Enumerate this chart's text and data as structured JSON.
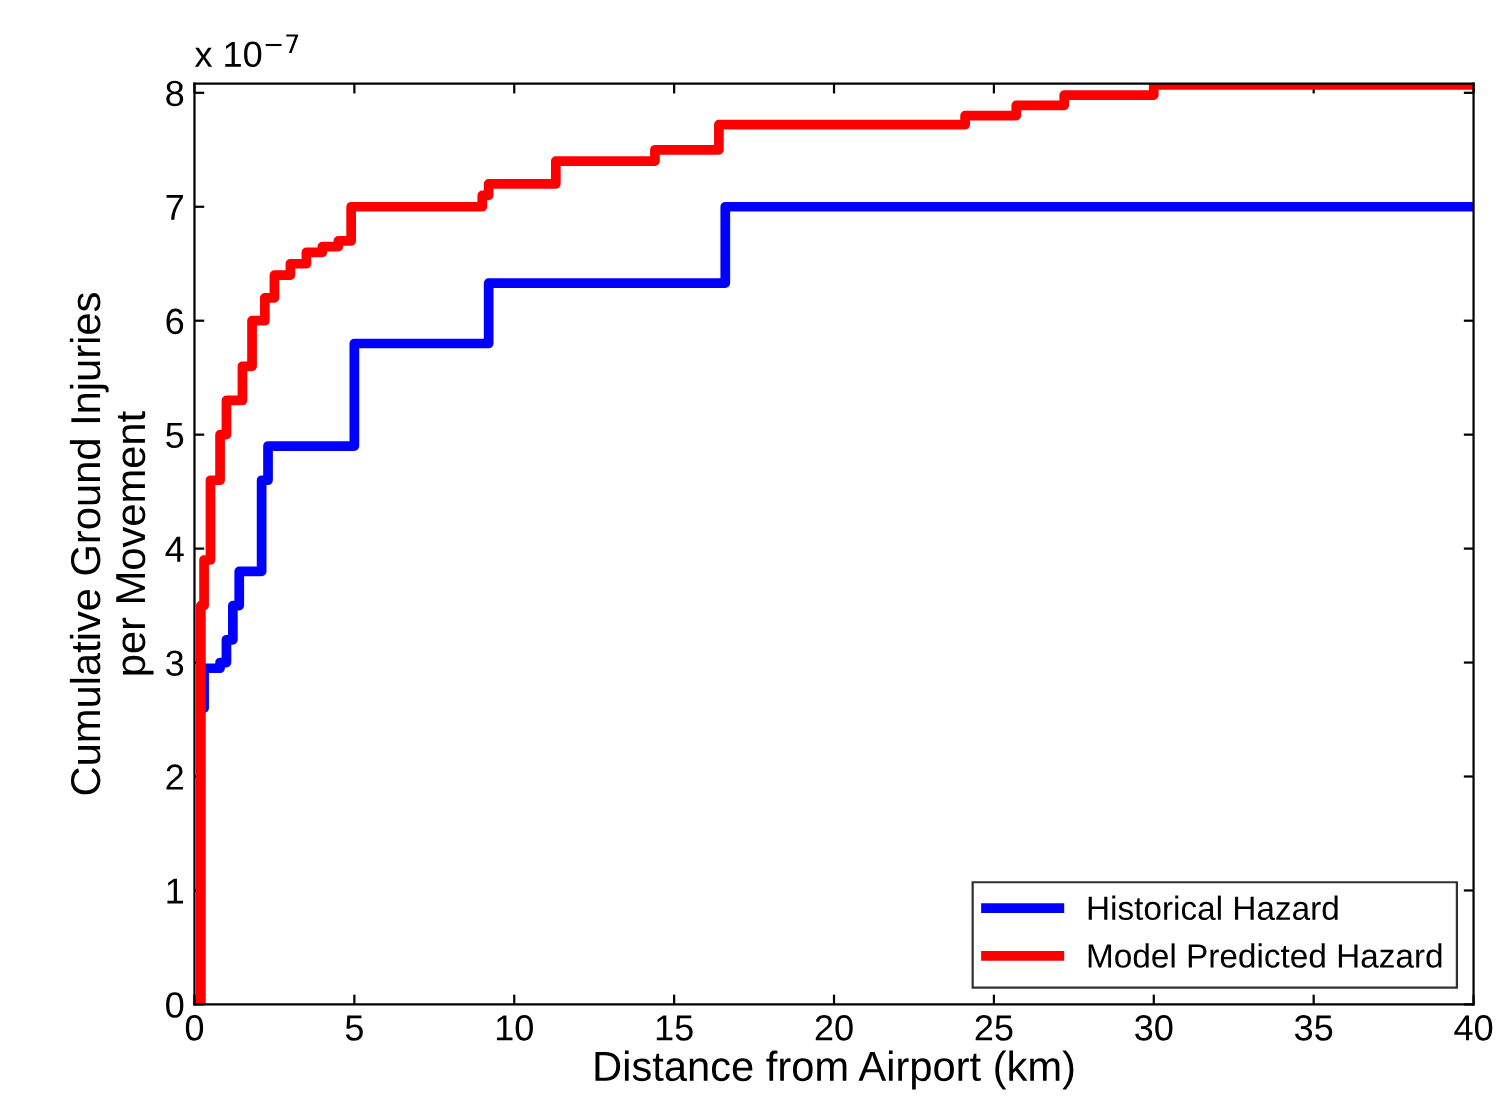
{
  "chart_data": {
    "type": "step",
    "xlabel": "Distance from Airport (km)",
    "ylabel": "Cumulative Ground Injuries\nper Movement",
    "annotations": [
      "x 10$^{−7}$"
    ],
    "xlim": [
      0,
      40
    ],
    "xticks": [
      0,
      5,
      10,
      15,
      20,
      25,
      30,
      35,
      40
    ],
    "ylim": [
      0,
      8.08
    ],
    "yticks": [
      0,
      1,
      2,
      3,
      4,
      5,
      6,
      7,
      8
    ],
    "legend": "bottom right",
    "grid": false,
    "line_style": "solid",
    "series": [
      {
        "name": "Historical Hazard",
        "color": "#0000ff",
        "x": [
          0.2,
          0.3,
          0.8,
          1.0,
          1.2,
          1.4,
          2.0,
          2.1,
          2.3,
          5.0,
          9.2,
          16.6,
          40
        ],
        "values": [
          2.6,
          2.95,
          3.0,
          3.2,
          3.5,
          3.8,
          3.8,
          4.6,
          4.9,
          5.8,
          6.33,
          7.0,
          7.0
        ]
      },
      {
        "name": "Model Predicted Hazard",
        "color": "#ff0000",
        "x": [
          0.1,
          0.2,
          0.3,
          0.5,
          0.8,
          1.0,
          1.5,
          1.8,
          2.2,
          2.5,
          3.0,
          3.5,
          4.0,
          4.5,
          4.9,
          9.0,
          9.2,
          11.3,
          14.4,
          16.4,
          24.1,
          25.7,
          27.2,
          30.0,
          40
        ],
        "values": [
          0,
          3.5,
          3.9,
          4.6,
          5.0,
          5.3,
          5.6,
          6.0,
          6.2,
          6.4,
          6.5,
          6.6,
          6.65,
          6.7,
          7.0,
          7.1,
          7.2,
          7.4,
          7.5,
          7.72,
          7.8,
          7.89,
          7.98,
          8.07,
          8.07
        ]
      }
    ]
  }
}
